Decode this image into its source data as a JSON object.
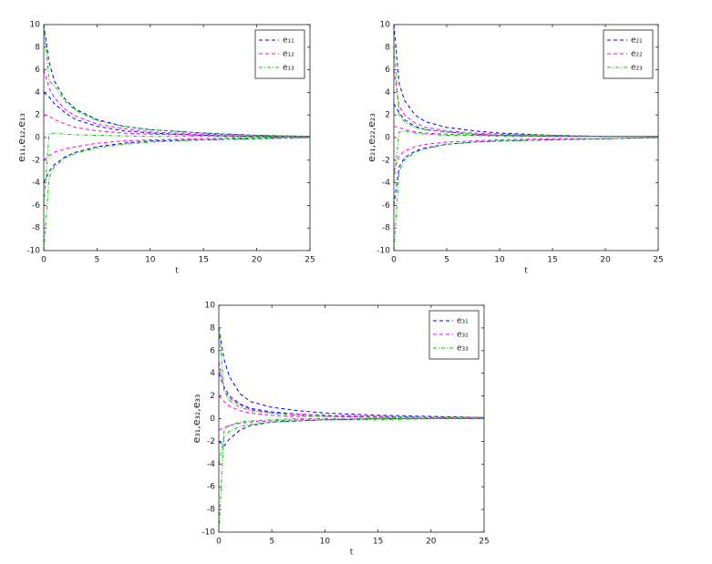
{
  "chart_data": [
    {
      "type": "line",
      "xlabel": "t",
      "ylabel": "e₁₁,e₁₂,e₁₃",
      "legend": "upper right",
      "x": [
        0,
        0.5,
        1,
        2,
        3,
        5,
        7.5,
        10,
        15,
        20,
        25
      ],
      "xlim": [
        0,
        25
      ],
      "ylim": [
        -10,
        10
      ],
      "xticks": [
        0,
        5,
        10,
        15,
        20,
        25
      ],
      "yticks": [
        -10,
        -8,
        -6,
        -4,
        -2,
        0,
        2,
        4,
        6,
        8,
        10
      ],
      "series": [
        {
          "name": "e₁₁",
          "color": "#0000ff",
          "dash": "4,3",
          "values": [
            [
              10,
              6.7,
              5.0,
              3.4,
              2.5,
              1.6,
              1.0,
              0.7,
              0.4,
              0.2,
              0.1
            ],
            [
              4,
              3.6,
              3.0,
              2.2,
              1.6,
              1.0,
              0.6,
              0.4,
              0.2,
              0.1,
              0.1
            ],
            [
              -4,
              -3.0,
              -2.4,
              -1.7,
              -1.3,
              -0.8,
              -0.5,
              -0.3,
              -0.2,
              -0.1,
              0
            ]
          ]
        },
        {
          "name": "e₁₂",
          "color": "#ff00ff",
          "dash": "4,3",
          "values": [
            [
              6,
              4.4,
              3.5,
              2.5,
              1.9,
              1.2,
              0.8,
              0.5,
              0.3,
              0.2,
              0.1
            ],
            [
              2,
              1.9,
              1.6,
              1.2,
              0.9,
              0.6,
              0.4,
              0.3,
              0.2,
              0.1,
              0.1
            ],
            [
              -2,
              -1.6,
              -1.3,
              -1.0,
              -0.8,
              -0.5,
              -0.3,
              -0.2,
              -0.1,
              0,
              0
            ]
          ]
        },
        {
          "name": "e₁₃",
          "color": "#00cc00",
          "dash": "4,2,1,2",
          "values": [
            [
              10,
              5.0,
              4.6,
              3.2,
              2.4,
              1.5,
              1.0,
              0.7,
              0.4,
              0.2,
              0.1
            ],
            [
              -10,
              -3.5,
              -2.6,
              -1.8,
              -1.4,
              -0.9,
              -0.6,
              -0.4,
              -0.2,
              -0.1,
              0
            ],
            [
              -6,
              0.3,
              0.4,
              0.3,
              0.25,
              0.2,
              0.15,
              0.1,
              0.1,
              0.05,
              0
            ]
          ]
        }
      ]
    },
    {
      "type": "line",
      "xlabel": "t",
      "ylabel": "e₂₁,e₂₂,e₂₃",
      "legend": "upper right",
      "x": [
        0,
        0.5,
        1,
        2,
        3,
        5,
        7.5,
        10,
        15,
        20,
        25
      ],
      "xlim": [
        0,
        25
      ],
      "ylim": [
        -10,
        10
      ],
      "xticks": [
        0,
        5,
        10,
        15,
        20,
        25
      ],
      "yticks": [
        -10,
        -8,
        -6,
        -4,
        -2,
        0,
        2,
        4,
        6,
        8,
        10
      ],
      "series": [
        {
          "name": "e₂₁",
          "color": "#0000ff",
          "dash": "4,3",
          "values": [
            [
              10,
              4.8,
              3.3,
              2.0,
              1.4,
              0.9,
              0.6,
              0.4,
              0.2,
              0.1,
              0.1
            ],
            [
              -6,
              -2.6,
              -1.8,
              -1.2,
              -0.9,
              -0.6,
              -0.4,
              -0.3,
              -0.2,
              -0.1,
              0
            ],
            [
              3,
              2.2,
              1.6,
              1.0,
              0.7,
              0.5,
              0.3,
              0.2,
              0.1,
              0.1,
              0.1
            ]
          ]
        },
        {
          "name": "e₂₂",
          "color": "#ff00ff",
          "dash": "4,3",
          "values": [
            [
              6,
              2.8,
              2.0,
              1.3,
              0.9,
              0.6,
              0.4,
              0.3,
              0.2,
              0.1,
              0.1
            ],
            [
              -3,
              -1.6,
              -1.2,
              -0.8,
              -0.6,
              -0.4,
              -0.3,
              -0.2,
              -0.1,
              -0.1,
              0
            ],
            [
              1,
              0.9,
              0.7,
              0.5,
              0.4,
              0.3,
              0.2,
              0.2,
              0.1,
              0.1,
              0.1
            ]
          ]
        },
        {
          "name": "e₂₃",
          "color": "#00cc00",
          "dash": "4,2,1,2",
          "values": [
            [
              8,
              2.0,
              1.4,
              0.9,
              0.7,
              0.5,
              0.3,
              0.2,
              0.2,
              0.1,
              0.1
            ],
            [
              -10,
              -3.0,
              -2.0,
              -1.3,
              -1.0,
              -0.6,
              -0.4,
              -0.3,
              -0.2,
              -0.1,
              0
            ],
            [
              -4,
              0.5,
              0.6,
              0.4,
              0.3,
              0.2,
              0.2,
              0.1,
              0.1,
              0.1,
              0.1
            ]
          ]
        }
      ]
    },
    {
      "type": "line",
      "xlabel": "t",
      "ylabel": "e₃₁,e₃₂,e₃₃",
      "legend": "upper right",
      "x": [
        0,
        0.5,
        1,
        2,
        3,
        5,
        7.5,
        10,
        15,
        20,
        25
      ],
      "xlim": [
        0,
        25
      ],
      "ylim": [
        -10,
        10
      ],
      "xticks": [
        0,
        5,
        10,
        15,
        20,
        25
      ],
      "yticks": [
        -10,
        -8,
        -6,
        -4,
        -2,
        0,
        2,
        4,
        6,
        8,
        10
      ],
      "series": [
        {
          "name": "e₃₁",
          "color": "#0000ff",
          "dash": "4,3",
          "values": [
            [
              8,
              5.2,
              3.7,
              2.2,
              1.5,
              1.0,
              0.7,
              0.5,
              0.3,
              0.2,
              0.1
            ],
            [
              -2,
              -2.4,
              -1.8,
              -1.0,
              -0.6,
              -0.3,
              -0.2,
              -0.1,
              0,
              0,
              0
            ],
            [
              4,
              2.8,
              2.0,
              1.3,
              0.9,
              0.6,
              0.4,
              0.3,
              0.2,
              0.1,
              0.1
            ]
          ]
        },
        {
          "name": "e₃₂",
          "color": "#ff00ff",
          "dash": "4,3",
          "values": [
            [
              5,
              2.5,
              1.8,
              1.2,
              0.8,
              0.5,
              0.4,
              0.3,
              0.2,
              0.1,
              0.1
            ],
            [
              -1,
              -0.8,
              -0.6,
              -0.4,
              -0.3,
              -0.2,
              -0.1,
              -0.1,
              0,
              0,
              0
            ],
            [
              2,
              1.5,
              1.1,
              0.7,
              0.5,
              0.3,
              0.2,
              0.2,
              0.1,
              0.1,
              0.1
            ]
          ]
        },
        {
          "name": "e₃₃",
          "color": "#00cc00",
          "dash": "4,2,1,2",
          "values": [
            [
              8,
              2.5,
              1.6,
              1.0,
              0.7,
              0.5,
              0.3,
              0.2,
              0.1,
              0.1,
              0.1
            ],
            [
              -4,
              -1.6,
              -1.1,
              -0.7,
              -0.5,
              -0.3,
              -0.2,
              -0.1,
              -0.1,
              0,
              0
            ],
            [
              -10,
              -1.0,
              -0.6,
              -0.3,
              -0.2,
              -0.1,
              0,
              0,
              0,
              0,
              0
            ]
          ]
        }
      ]
    }
  ]
}
